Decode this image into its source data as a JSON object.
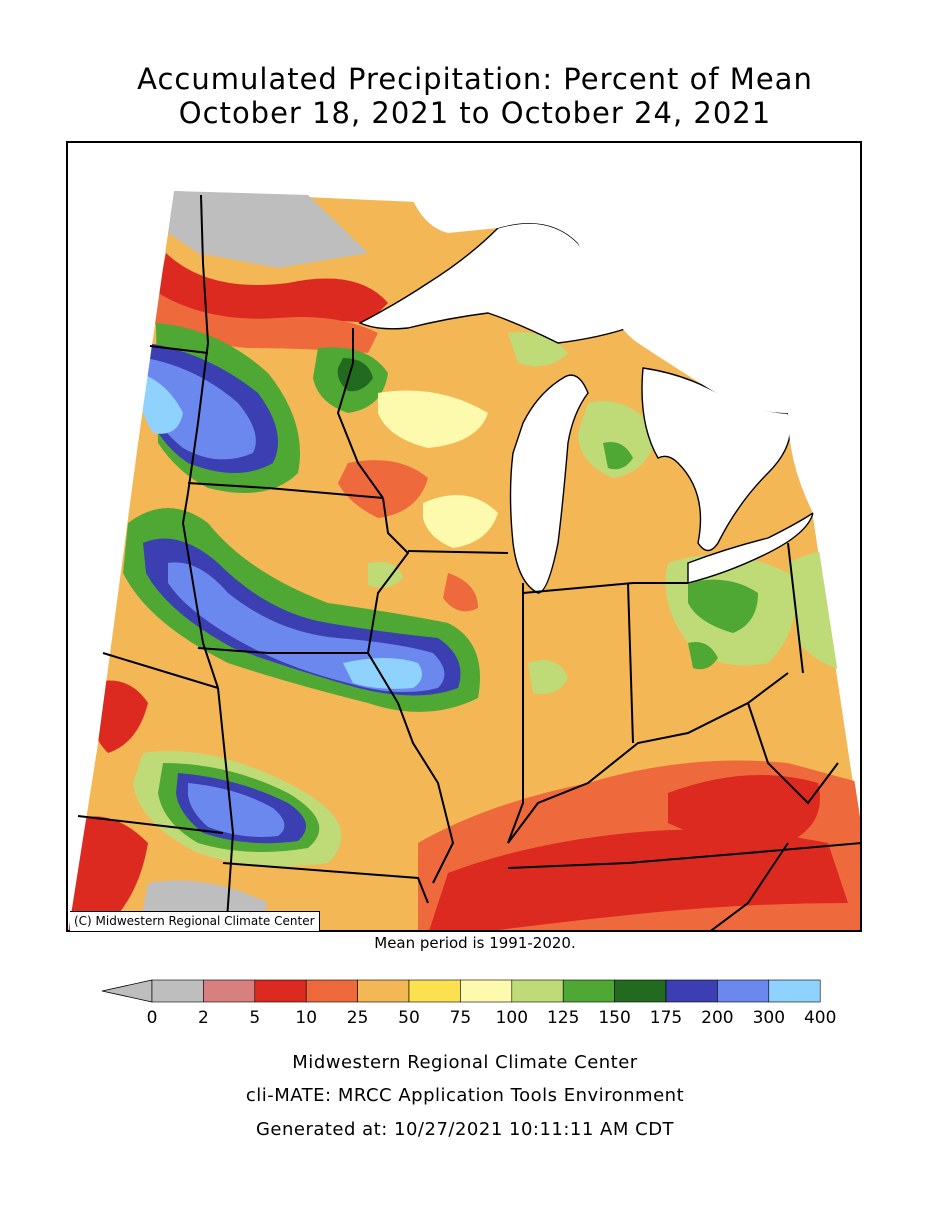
{
  "title_line1": "Accumulated Precipitation: Percent of Mean",
  "title_line2": "October 18, 2021 to October 24, 2021",
  "copyright": "(C) Midwestern Regional Climate Center",
  "mean_note": "Mean period is 1991-2020.",
  "legend": {
    "bins": [
      {
        "label": "0",
        "color": "#bebebe"
      },
      {
        "label": "2",
        "color": "#d88080"
      },
      {
        "label": "5",
        "color": "#dc2a20"
      },
      {
        "label": "10",
        "color": "#ee6a3c"
      },
      {
        "label": "25",
        "color": "#f4b755"
      },
      {
        "label": "50",
        "color": "#fbe04f"
      },
      {
        "label": "75",
        "color": "#fdf9ad"
      },
      {
        "label": "100",
        "color": "#bedb78"
      },
      {
        "label": "125",
        "color": "#4fa833"
      },
      {
        "label": "150",
        "color": "#226a20"
      },
      {
        "label": "175",
        "color": "#3b3fb1"
      },
      {
        "label": "200",
        "color": "#6b88ef"
      },
      {
        "label": "300",
        "color": "#8fd2fd"
      },
      {
        "label": "400",
        "color": ""
      }
    ]
  },
  "footer": {
    "line1": "Midwestern Regional Climate Center",
    "line2": "cli-MATE: MRCC Application Tools Environment",
    "line3": "Generated at: 10/27/2021 10:11:11 AM CDT"
  }
}
